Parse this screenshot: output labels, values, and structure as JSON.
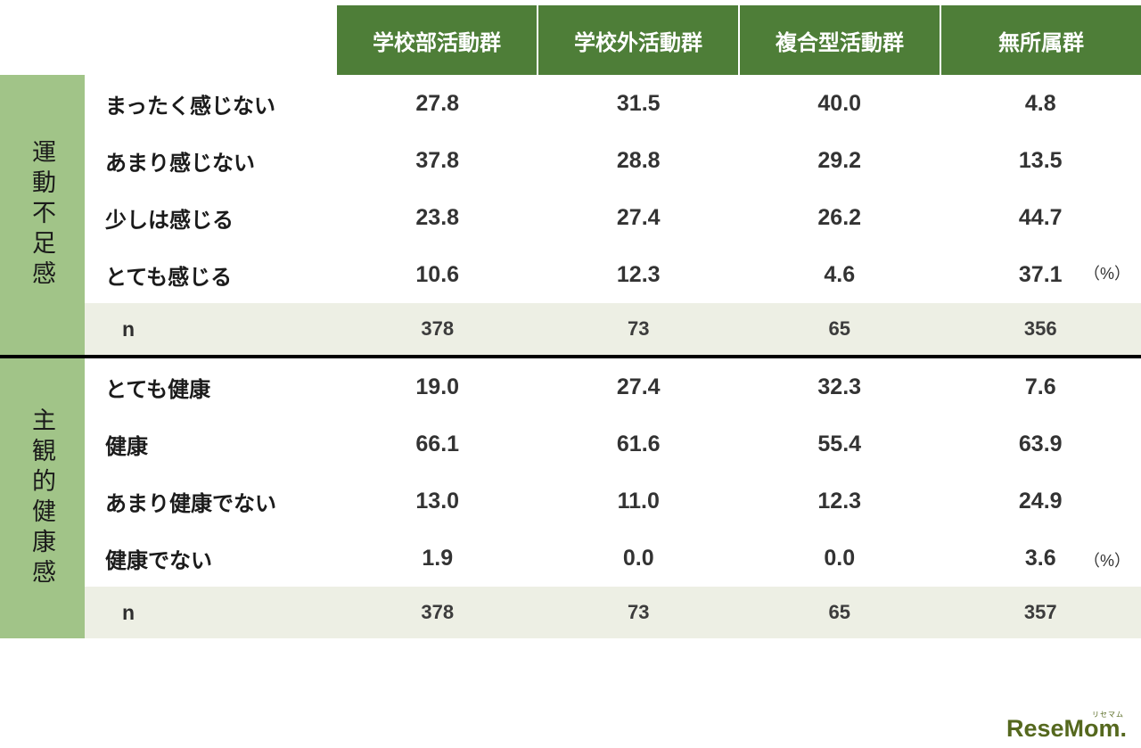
{
  "chart_data": {
    "type": "table",
    "columns": [
      "学校部活動群",
      "学校外活動群",
      "複合型活動群",
      "無所属群"
    ],
    "unit": "（%）",
    "sections": [
      {
        "label": "運動不足感",
        "rows": [
          {
            "label": "まったく感じない",
            "values": [
              27.8,
              31.5,
              40.0,
              4.8
            ]
          },
          {
            "label": "あまり感じない",
            "values": [
              37.8,
              28.8,
              29.2,
              13.5
            ]
          },
          {
            "label": "少しは感じる",
            "values": [
              23.8,
              27.4,
              26.2,
              44.7
            ]
          },
          {
            "label": "とても感じる",
            "values": [
              10.6,
              12.3,
              4.6,
              37.1
            ]
          }
        ],
        "n": {
          "label": "n",
          "values": [
            378,
            73,
            65,
            356
          ]
        }
      },
      {
        "label": "主観的健康感",
        "rows": [
          {
            "label": "とても健康",
            "values": [
              19.0,
              27.4,
              32.3,
              7.6
            ]
          },
          {
            "label": "健康",
            "values": [
              66.1,
              61.6,
              55.4,
              63.9
            ]
          },
          {
            "label": "あまり健康でない",
            "values": [
              13.0,
              11.0,
              12.3,
              24.9
            ]
          },
          {
            "label": "健康でない",
            "values": [
              1.9,
              0.0,
              0.0,
              3.6
            ]
          }
        ],
        "n": {
          "label": "n",
          "values": [
            378,
            73,
            65,
            357
          ]
        }
      }
    ]
  },
  "colors": {
    "header_bg": "#4e7e38",
    "header_text": "#ffffff",
    "band_bg": "#a1c488",
    "n_row_bg": "#edefe4",
    "divider": "#000000",
    "logo_green": "#55681e"
  },
  "logo": {
    "text": "ReseMom.",
    "ruby": "リセマム"
  }
}
